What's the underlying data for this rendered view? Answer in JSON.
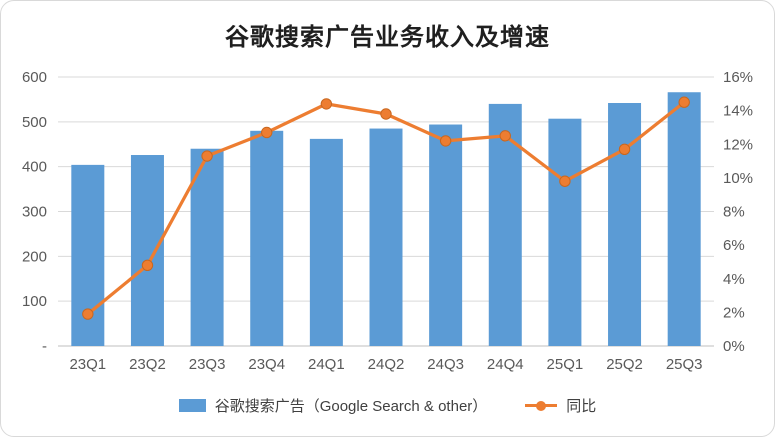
{
  "chart_data": {
    "type": "combo-bar-line",
    "title": "谷歌搜索广告业务收入及增速",
    "categories": [
      "23Q1",
      "23Q2",
      "23Q3",
      "23Q4",
      "24Q1",
      "24Q2",
      "24Q3",
      "24Q4",
      "25Q1",
      "25Q2",
      "25Q3"
    ],
    "series": [
      {
        "name": "谷歌搜索广告（Google Search & other）",
        "type": "bar",
        "axis": "left",
        "color": "#5B9BD5",
        "values": [
          404,
          426,
          440,
          480,
          462,
          485,
          494,
          540,
          507,
          542,
          566
        ]
      },
      {
        "name": "同比",
        "type": "line",
        "axis": "right",
        "color": "#ED7D31",
        "values": [
          1.9,
          4.8,
          11.3,
          12.7,
          14.4,
          13.8,
          12.2,
          12.5,
          9.8,
          11.7,
          14.5
        ]
      }
    ],
    "left_axis": {
      "min": 0,
      "max": 600,
      "step": 100,
      "tick_labels": [
        "-",
        "100",
        "200",
        "300",
        "400",
        "500",
        "600"
      ]
    },
    "right_axis": {
      "min": 0,
      "max": 16,
      "step": 2,
      "unit": "%",
      "tick_labels": [
        "0%",
        "2%",
        "4%",
        "6%",
        "8%",
        "10%",
        "12%",
        "14%",
        "16%"
      ]
    },
    "grid": true,
    "legend_position": "bottom",
    "colors": {
      "bar": "#5B9BD5",
      "line": "#ED7D31",
      "gridline": "#D9D9D9",
      "axis_line": "#BFBFBF",
      "tick_text": "#595959"
    }
  }
}
